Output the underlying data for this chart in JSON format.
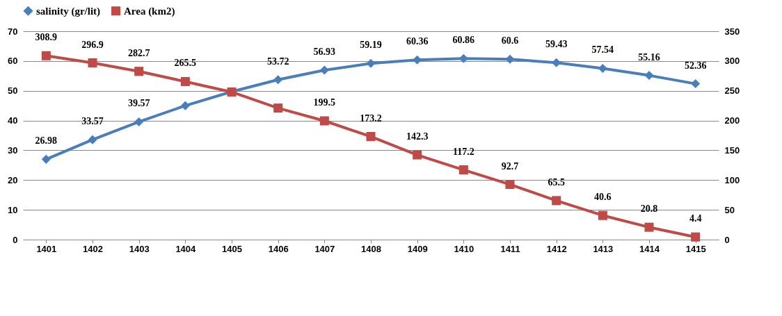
{
  "chart_data": {
    "type": "line",
    "categories": [
      "1401",
      "1402",
      "1403",
      "1404",
      "1405",
      "1406",
      "1407",
      "1408",
      "1409",
      "1410",
      "1411",
      "1412",
      "1413",
      "1414",
      "1415"
    ],
    "series": [
      {
        "name": "salinity (gr/lit)",
        "color": "#4a7ebb",
        "marker": "diamond",
        "values": [
          26.98,
          33.57,
          39.57,
          45,
          49.7,
          53.72,
          56.93,
          59.19,
          60.36,
          60.86,
          60.6,
          59.43,
          57.54,
          55.16,
          52.36
        ],
        "value_labels": [
          "26.98",
          "33.57",
          "39.57",
          null,
          null,
          "53.72",
          "56.93",
          "59.19",
          "60.36",
          "60.86",
          "60.6",
          "59.43",
          "57.54",
          "55.16",
          "52.36"
        ]
      },
      {
        "name": "Area (km2)",
        "color": "#be4b48",
        "marker": "square",
        "axis": "y2",
        "values": [
          308.9,
          296.9,
          282.7,
          265.5,
          248,
          221,
          199.5,
          173.2,
          142.3,
          117.2,
          92.7,
          65.5,
          40.6,
          20.8,
          4.4
        ],
        "value_labels": [
          "308.9",
          "296.9",
          "282.7",
          "265.5",
          null,
          null,
          "199.5",
          "173.2",
          "142.3",
          "117.2",
          "92.7",
          "65.5",
          "40.6",
          "20.8",
          "4.4"
        ]
      }
    ],
    "ylim": [
      0,
      70
    ],
    "yticks": [
      0,
      10,
      20,
      30,
      40,
      50,
      60,
      70
    ],
    "y2lim": [
      0,
      350
    ],
    "y2ticks": [
      0,
      50,
      100,
      150,
      200,
      250,
      300,
      350
    ],
    "grid": "y",
    "legend": "top"
  }
}
